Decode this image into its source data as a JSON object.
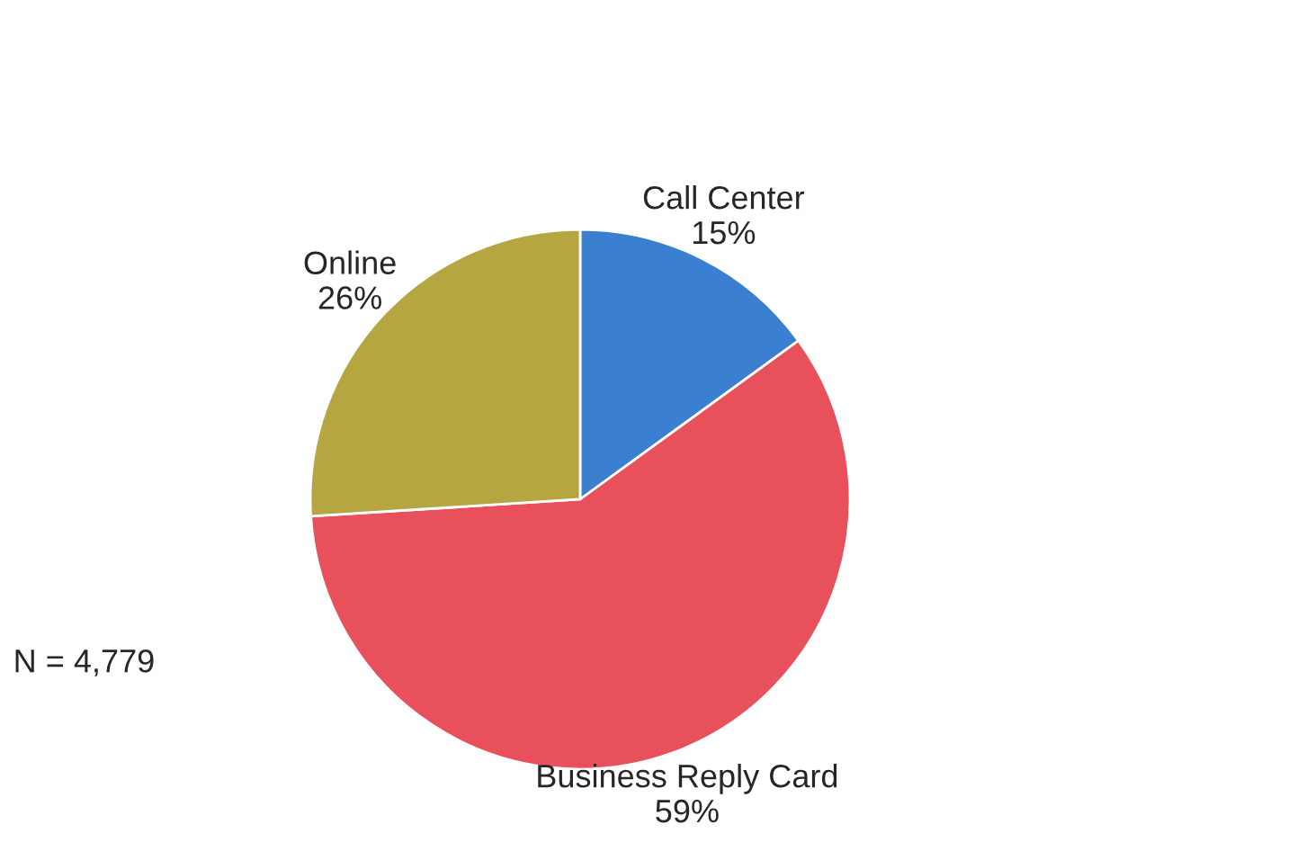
{
  "chart_data": {
    "type": "pie",
    "categories": [
      "Call Center",
      "Business Reply Card",
      "Online"
    ],
    "values": [
      15,
      59,
      26
    ],
    "value_labels": [
      "15%",
      "59%",
      "26%"
    ],
    "colors": [
      "#3b7fd1",
      "#e8505b",
      "#b5a642"
    ],
    "annotations": [
      "N = 4,779"
    ],
    "legend": false
  }
}
